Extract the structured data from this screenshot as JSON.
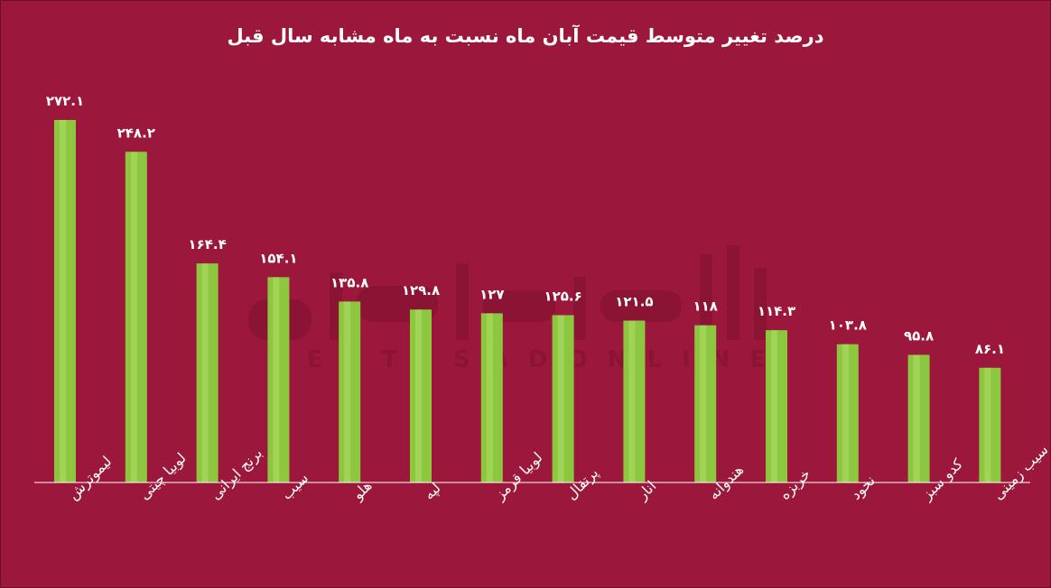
{
  "chart_data": {
    "type": "bar",
    "title": "درصد تغییر متوسط قیمت آبان ماه نسبت به ماه مشابه سال قبل",
    "categories": [
      "لیموترش",
      "لوبیا چیتی",
      "برنج ایرانی",
      "سیب",
      "هلو",
      "لپه",
      "لوبیا قرمز",
      "پرتقال",
      "انار",
      "هندوانه",
      "خربزه",
      "نخود",
      "کدو سبز",
      "سیب زمینی"
    ],
    "values": [
      272.1,
      248.2,
      164.4,
      154.1,
      135.8,
      129.8,
      127,
      125.6,
      121.5,
      118,
      114.3,
      103.8,
      95.8,
      86.1
    ],
    "value_labels": [
      "۲۷۲.۱",
      "۲۴۸.۲",
      "۱۶۴.۴",
      "۱۵۴.۱",
      "۱۳۵.۸",
      "۱۲۹.۸",
      "۱۲۷",
      "۱۲۵.۶",
      "۱۲۱.۵",
      "۱۱۸",
      "۱۱۴.۳",
      "۱۰۳.۸",
      "۹۵.۸",
      "۸۶.۱"
    ],
    "ylim": [
      0,
      290
    ],
    "grid": false,
    "legend": "none",
    "colors": {
      "background": "#9b173b",
      "bar": "#8dc63f",
      "bar_highlight": "#b2e06a",
      "text": "#ffffff",
      "axis": "#ffffff"
    }
  },
  "watermark": {
    "text": "EGTESADONLINE"
  }
}
